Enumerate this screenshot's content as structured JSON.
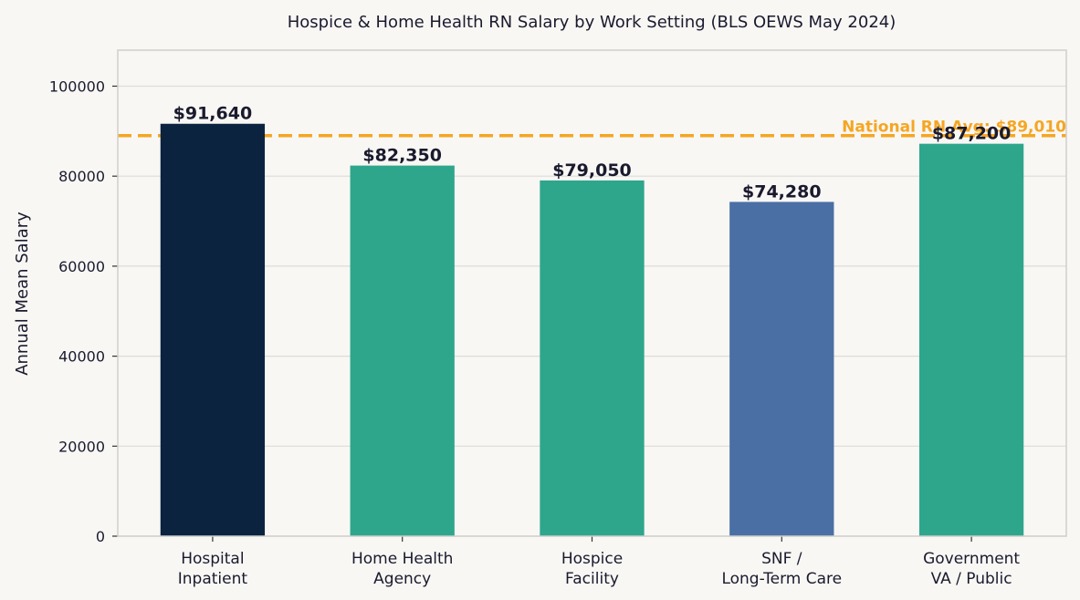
{
  "chart_data": {
    "type": "bar",
    "title": "Hospice & Home Health RN Salary by Work Setting (BLS OEWS May 2024)",
    "xlabel": "",
    "ylabel": "Annual Mean Salary",
    "ylim": [
      0,
      108000
    ],
    "yticks": [
      0,
      20000,
      40000,
      60000,
      80000,
      100000
    ],
    "grid": true,
    "categories": [
      [
        "Hospital",
        "Inpatient"
      ],
      [
        "Home Health",
        "Agency"
      ],
      [
        "Hospice",
        "Facility"
      ],
      [
        "SNF /",
        "Long-Term Care"
      ],
      [
        "Government",
        "VA / Public"
      ]
    ],
    "values": [
      91640,
      82350,
      79050,
      74280,
      87200
    ],
    "value_labels": [
      "$91,640",
      "$82,350",
      "$79,050",
      "$74,280",
      "$87,200"
    ],
    "bar_colors": [
      "#0c2340",
      "#2ea68c",
      "#2ea68c",
      "#4a6fa5",
      "#2ea68c"
    ],
    "reference_line": {
      "value": 89010,
      "label": "National RN Avg: $89,010",
      "color": "#f5a623",
      "style": "dashed"
    }
  }
}
